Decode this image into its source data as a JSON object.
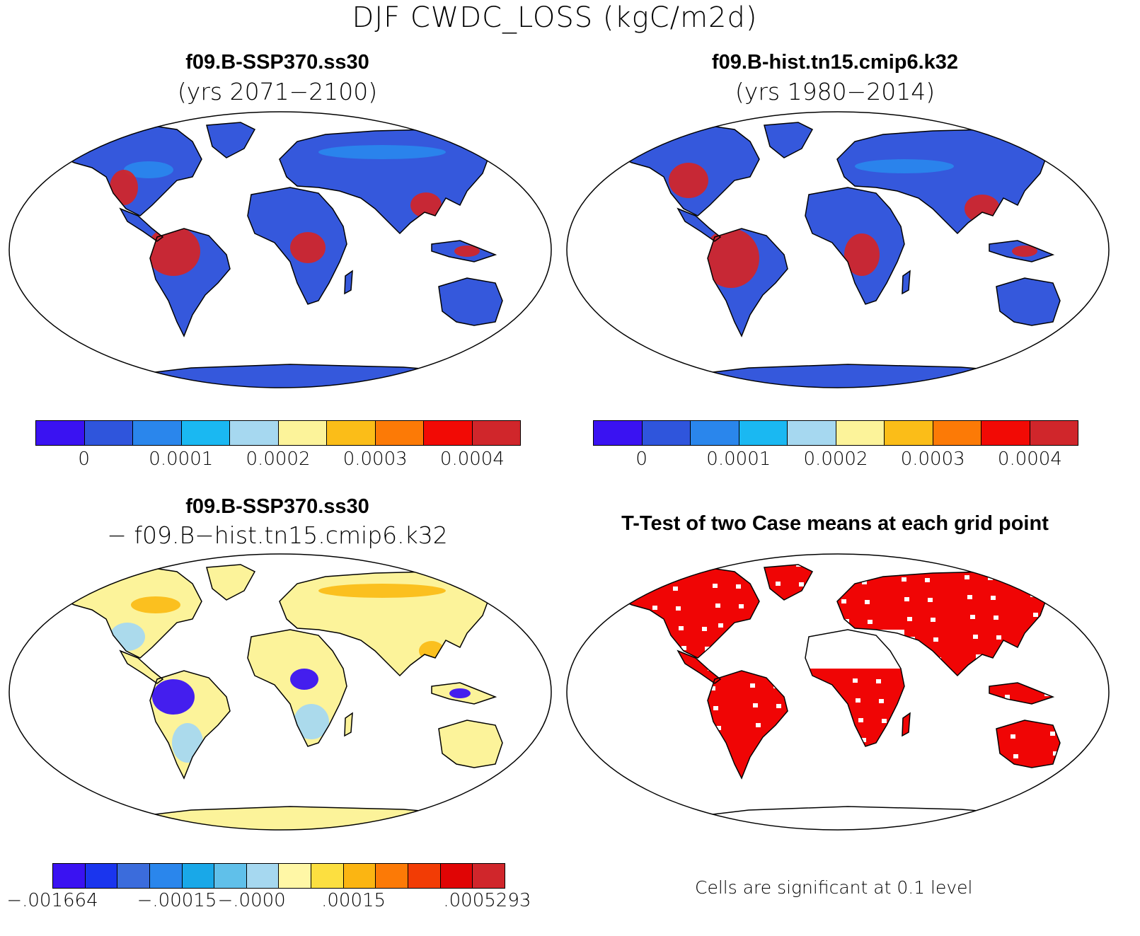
{
  "title": "DJF CWDC_LOSS (kgC/m2d)",
  "panels": {
    "p1": {
      "title": "f09.B-SSP370.ss30",
      "subtitle": "(yrs 2071−2100)"
    },
    "p2": {
      "title": "f09.B-hist.tn15.cmip6.k32",
      "subtitle": "(yrs 1980−2014)"
    },
    "p3": {
      "title": "f09.B-SSP370.ss30",
      "subtitle": "− f09.B−hist.tn15.cmip6.k32"
    },
    "p4": {
      "title": "T-Test of two Case means at each grid point",
      "note": "Cells are significant at 0.1 level"
    }
  },
  "colorbars": {
    "absolute": {
      "colors": [
        "#3a12f2",
        "#2f55dc",
        "#2a86ec",
        "#1ab8f2",
        "#a6d8f0",
        "#fcf39a",
        "#fbbd18",
        "#fc7a06",
        "#f20a05",
        "#d0262b"
      ],
      "ticks": [
        "0",
        "0.0001",
        "0.0002",
        "0.0003",
        "0.0004"
      ]
    },
    "difference": {
      "colors": [
        "#3a12f2",
        "#1a35ee",
        "#3b6cdc",
        "#2a86ec",
        "#19a8e8",
        "#60c0ea",
        "#a6d8f0",
        "#fff7a6",
        "#fcdf40",
        "#fbb512",
        "#fc7a06",
        "#f23c05",
        "#e00505",
        "#d0262b"
      ],
      "ticks": [
        "−.001664",
        "−.00015",
        "−.0000",
        ".00015",
        ".0005293"
      ]
    }
  },
  "map_colors": {
    "ocean": "#ffffff",
    "land_low": "#3558dc",
    "land_mid": "#2a86ec",
    "land_high": "#d0262b",
    "diff_base": "#fcf39a",
    "diff_neg": "#a6d8f0",
    "diff_strong_neg": "#3a12f2",
    "diff_pos": "#fbbd18",
    "significant": "#f00505"
  }
}
